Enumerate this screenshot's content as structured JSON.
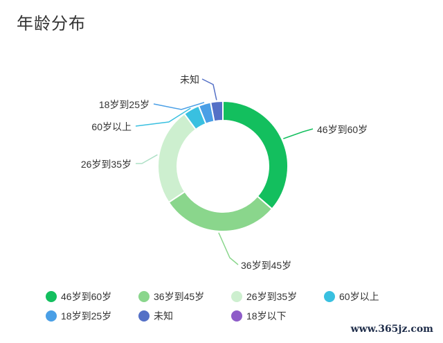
{
  "title": "年龄分布",
  "watermark": "www.365jz.com",
  "chart_data": {
    "type": "pie",
    "style": "donut",
    "title": "年龄分布",
    "legend_position": "bottom",
    "slices": [
      {
        "label": "46岁到60岁",
        "value": 36,
        "color": "#13bf5e"
      },
      {
        "label": "36岁到45岁",
        "value": 29,
        "color": "#8ad68c"
      },
      {
        "label": "26岁到35岁",
        "value": 24,
        "color": "#cdefcf"
      },
      {
        "label": "60岁以上",
        "value": 4,
        "color": "#39c0e0"
      },
      {
        "label": "18岁到25岁",
        "value": 3,
        "color": "#4a9fe6"
      },
      {
        "label": "未知",
        "value": 3,
        "color": "#5470c6"
      },
      {
        "label": "18岁以下",
        "value": 0,
        "color": "#8e5cc8"
      }
    ]
  }
}
